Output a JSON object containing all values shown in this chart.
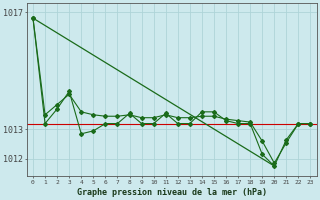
{
  "background_color": "#cde9ed",
  "grid_color": "#aed4d8",
  "line_color": "#1a6b1a",
  "red_line_color": "#cc0000",
  "title": "Graphe pression niveau de la mer (hPa)",
  "xlim": [
    -0.5,
    23.5
  ],
  "ylim": [
    1011.4,
    1017.3
  ],
  "yticks": [
    1012,
    1013,
    1017
  ],
  "ytick_labels": [
    "1012",
    "1013",
    "1017"
  ],
  "hours": [
    0,
    1,
    2,
    3,
    4,
    5,
    6,
    7,
    8,
    9,
    10,
    11,
    12,
    13,
    14,
    15,
    16,
    17,
    18,
    19,
    20,
    21,
    22,
    23
  ],
  "series_main": [
    1016.8,
    1013.2,
    1013.7,
    1014.3,
    1012.85,
    1012.95,
    1013.2,
    1013.2,
    1013.55,
    1013.2,
    1013.2,
    1013.55,
    1013.2,
    1013.2,
    1013.6,
    1013.6,
    1013.3,
    1013.2,
    1013.2,
    1012.15,
    1011.75,
    1012.65,
    1013.2,
    1013.2
  ],
  "series2": [
    1016.8,
    1013.5,
    1013.85,
    1014.2,
    1013.6,
    1013.5,
    1013.45,
    1013.45,
    1013.5,
    1013.4,
    1013.4,
    1013.5,
    1013.4,
    1013.4,
    1013.45,
    1013.45,
    1013.35,
    1013.3,
    1013.25,
    1012.6,
    1011.85,
    1012.55,
    1013.2,
    1013.2
  ],
  "trend_line_x": [
    0,
    20
  ],
  "trend_line_y": [
    1016.8,
    1011.75
  ],
  "flat_line_y": 1013.2,
  "x_tick_labels": [
    "0",
    "1",
    "2",
    "3",
    "4",
    "5",
    "6",
    "7",
    "8",
    "9",
    "10",
    "11",
    "12",
    "13",
    "14",
    "15",
    "16",
    "17",
    "18",
    "19",
    "20",
    "21",
    "22",
    "23"
  ]
}
